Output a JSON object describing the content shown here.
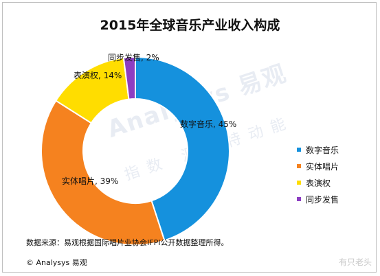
{
  "chart_data": {
    "type": "pie",
    "title": "2015年全球音乐产业收入构成",
    "categories": [
      "数字音乐",
      "实体唱片",
      "表演权",
      "同步发售"
    ],
    "values": [
      45,
      39,
      14,
      2
    ],
    "data_labels": [
      "数字音乐, 45%",
      "实体唱片, 39%",
      "表演权, 14%",
      "同步发售, 2%"
    ],
    "colors": [
      "#1591dd",
      "#f5821f",
      "#ffdd00",
      "#8d3ec2"
    ],
    "donut": true,
    "legend_position": "right",
    "legend": [
      "数字音乐",
      "实体唱片",
      "表演权",
      "同步发售"
    ]
  },
  "footer": {
    "source": "数据来源：易观根据国际唱片业协会IFPI公开数据整理所得。",
    "copyright": "© Analysys 易观"
  },
  "watermark": {
    "brand": "Analysys 易观",
    "slogan": "指数 洞比特动能",
    "corner": "有只老头"
  }
}
